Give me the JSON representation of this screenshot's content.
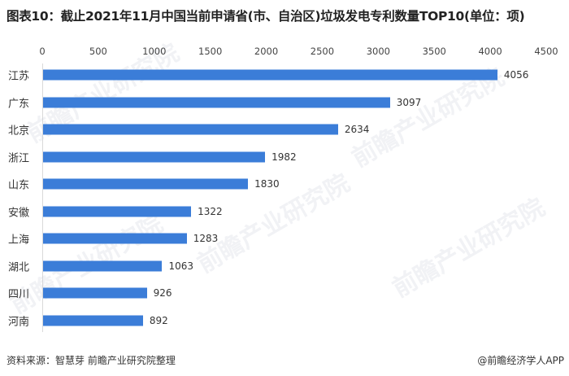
{
  "title": "图表10：截止2021年11月中国当前申请省(市、自治区)垃圾发电专利数量TOP10(单位：项)",
  "footer": {
    "source": "资料来源：智慧芽 前瞻产业研究院整理",
    "credit": "@前瞻经济学人APP"
  },
  "watermark": "前瞻产业研究院",
  "colors": {
    "bar": "#3b7dd8",
    "axis": "#d9d9d9"
  },
  "chart_data": {
    "type": "bar",
    "orientation": "horizontal",
    "title": "图表10：截止2021年11月中国当前申请省(市、自治区)垃圾发电专利数量TOP10(单位：项)",
    "xlabel": "",
    "ylabel": "",
    "xlim": [
      0,
      4500
    ],
    "x_ticks": [
      "0",
      "500",
      "1000",
      "1500",
      "2000",
      "2500",
      "3000",
      "3500",
      "4000",
      "4500"
    ],
    "x_axis_position": "top",
    "grid": false,
    "legend": null,
    "categories": [
      "江苏",
      "广东",
      "北京",
      "浙江",
      "山东",
      "安徽",
      "上海",
      "湖北",
      "四川",
      "河南"
    ],
    "values": [
      4056,
      3097,
      2634,
      1982,
      1830,
      1322,
      1283,
      1063,
      926,
      892
    ],
    "data_labels": [
      "4056",
      "3097",
      "2634",
      "1982",
      "1830",
      "1322",
      "1283",
      "1063",
      "926",
      "892"
    ]
  }
}
